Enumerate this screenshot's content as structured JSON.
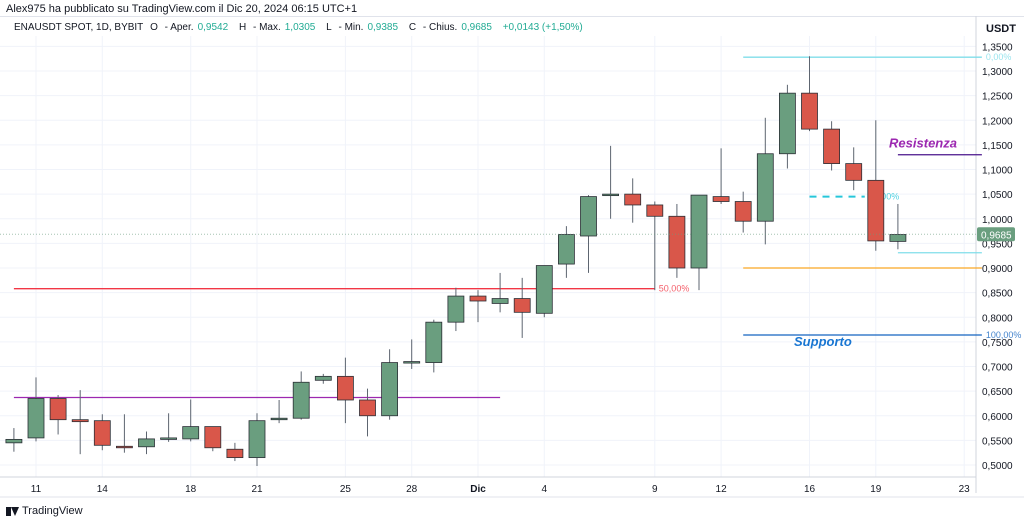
{
  "header": {
    "published": "Alex975 ha pubblicato su TradingView.com il Dic 20, 2024 06:15 UTC+1"
  },
  "legend": {
    "symbol": "ENAUSDT SPOT, 1D, BYBIT",
    "o_label": "O",
    "o_text": "Aper.",
    "o_value": "0,9542",
    "h_label": "H",
    "h_text": "Max.",
    "h_value": "1,0305",
    "l_label": "L",
    "l_text": "Min.",
    "l_value": "0,9385",
    "c_label": "C",
    "c_text": "Chius.",
    "c_value": "0,9685",
    "change": "+0,0143 (+1,50%)"
  },
  "footer": {
    "brand": "TradingView"
  },
  "chart_data": {
    "type": "candlestick",
    "currency": "USDT",
    "y_ticks": [
      "0,5000",
      "0,5500",
      "0,6000",
      "0,6500",
      "0,7000",
      "0,7500",
      "0,8000",
      "0,8500",
      "0,9000",
      "0,9500",
      "1,0000",
      "1,0500",
      "1,1000",
      "1,1500",
      "1,2000",
      "1,2500",
      "1,3000",
      "1,3500"
    ],
    "x_ticks": [
      {
        "label": "11",
        "day": 11
      },
      {
        "label": "14",
        "day": 14
      },
      {
        "label": "18",
        "day": 18
      },
      {
        "label": "21",
        "day": 21
      },
      {
        "label": "25",
        "day": 25
      },
      {
        "label": "28",
        "day": 28
      },
      {
        "label": "Dic",
        "day": 31
      },
      {
        "label": "4",
        "day": 34
      },
      {
        "label": "9",
        "day": 39
      },
      {
        "label": "12",
        "day": 42
      },
      {
        "label": "16",
        "day": 46
      },
      {
        "label": "19",
        "day": 49
      },
      {
        "label": "23",
        "day": 53
      }
    ],
    "last_price": "0,9685",
    "candles": [
      {
        "d": 10,
        "o": 0.545,
        "h": 0.575,
        "l": 0.527,
        "c": 0.552
      },
      {
        "d": 11,
        "o": 0.555,
        "h": 0.678,
        "l": 0.548,
        "c": 0.635
      },
      {
        "d": 12,
        "o": 0.635,
        "h": 0.642,
        "l": 0.562,
        "c": 0.592
      },
      {
        "d": 13,
        "o": 0.592,
        "h": 0.652,
        "l": 0.522,
        "c": 0.588
      },
      {
        "d": 14,
        "o": 0.59,
        "h": 0.603,
        "l": 0.53,
        "c": 0.54
      },
      {
        "d": 15,
        "o": 0.538,
        "h": 0.603,
        "l": 0.525,
        "c": 0.535
      },
      {
        "d": 16,
        "o": 0.537,
        "h": 0.568,
        "l": 0.522,
        "c": 0.553
      },
      {
        "d": 17,
        "o": 0.553,
        "h": 0.605,
        "l": 0.547,
        "c": 0.555
      },
      {
        "d": 18,
        "o": 0.553,
        "h": 0.633,
        "l": 0.548,
        "c": 0.578
      },
      {
        "d": 19,
        "o": 0.578,
        "h": 0.578,
        "l": 0.528,
        "c": 0.535
      },
      {
        "d": 20,
        "o": 0.532,
        "h": 0.545,
        "l": 0.508,
        "c": 0.515
      },
      {
        "d": 21,
        "o": 0.515,
        "h": 0.605,
        "l": 0.498,
        "c": 0.59
      },
      {
        "d": 22,
        "o": 0.592,
        "h": 0.632,
        "l": 0.585,
        "c": 0.595
      },
      {
        "d": 23,
        "o": 0.595,
        "h": 0.69,
        "l": 0.592,
        "c": 0.668
      },
      {
        "d": 24,
        "o": 0.672,
        "h": 0.685,
        "l": 0.665,
        "c": 0.68
      },
      {
        "d": 25,
        "o": 0.68,
        "h": 0.718,
        "l": 0.585,
        "c": 0.632
      },
      {
        "d": 26,
        "o": 0.632,
        "h": 0.655,
        "l": 0.558,
        "c": 0.6
      },
      {
        "d": 27,
        "o": 0.6,
        "h": 0.735,
        "l": 0.592,
        "c": 0.708
      },
      {
        "d": 28,
        "o": 0.708,
        "h": 0.755,
        "l": 0.695,
        "c": 0.71
      },
      {
        "d": 29,
        "o": 0.708,
        "h": 0.795,
        "l": 0.688,
        "c": 0.79
      },
      {
        "d": 30,
        "o": 0.79,
        "h": 0.86,
        "l": 0.772,
        "c": 0.843
      },
      {
        "d": 31,
        "o": 0.843,
        "h": 0.855,
        "l": 0.79,
        "c": 0.833
      },
      {
        "d": 32,
        "o": 0.828,
        "h": 0.89,
        "l": 0.81,
        "c": 0.838
      },
      {
        "d": 33,
        "o": 0.838,
        "h": 0.88,
        "l": 0.758,
        "c": 0.81
      },
      {
        "d": 34,
        "o": 0.808,
        "h": 0.905,
        "l": 0.8,
        "c": 0.905
      },
      {
        "d": 35,
        "o": 0.908,
        "h": 0.985,
        "l": 0.88,
        "c": 0.968
      },
      {
        "d": 36,
        "o": 0.965,
        "h": 1.048,
        "l": 0.89,
        "c": 1.045
      },
      {
        "d": 37,
        "o": 1.048,
        "h": 1.148,
        "l": 1.0,
        "c": 1.05
      },
      {
        "d": 38,
        "o": 1.05,
        "h": 1.082,
        "l": 0.992,
        "c": 1.028
      },
      {
        "d": 39,
        "o": 1.028,
        "h": 1.035,
        "l": 0.855,
        "c": 1.005
      },
      {
        "d": 40,
        "o": 1.005,
        "h": 1.03,
        "l": 0.88,
        "c": 0.9
      },
      {
        "d": 41,
        "o": 0.9,
        "h": 1.048,
        "l": 0.855,
        "c": 1.048
      },
      {
        "d": 42,
        "o": 1.045,
        "h": 1.143,
        "l": 1.03,
        "c": 1.035
      },
      {
        "d": 43,
        "o": 1.035,
        "h": 1.055,
        "l": 0.972,
        "c": 0.995
      },
      {
        "d": 44,
        "o": 0.995,
        "h": 1.205,
        "l": 0.948,
        "c": 1.132
      },
      {
        "d": 45,
        "o": 1.132,
        "h": 1.272,
        "l": 1.102,
        "c": 1.255
      },
      {
        "d": 46,
        "o": 1.255,
        "h": 1.33,
        "l": 1.178,
        "c": 1.182
      },
      {
        "d": 47,
        "o": 1.182,
        "h": 1.198,
        "l": 1.098,
        "c": 1.112
      },
      {
        "d": 48,
        "o": 1.112,
        "h": 1.145,
        "l": 1.058,
        "c": 1.078
      },
      {
        "d": 49,
        "o": 1.078,
        "h": 1.2,
        "l": 0.935,
        "c": 0.955
      },
      {
        "d": 50,
        "o": 0.954,
        "h": 1.03,
        "l": 0.938,
        "c": 0.968
      }
    ],
    "lines": [
      {
        "kind": "hline",
        "from": 10,
        "to": 39,
        "price": 0.858,
        "color": "#f23645",
        "label": "50,00%"
      },
      {
        "kind": "hline",
        "from": 10,
        "to": 32,
        "price": 0.637,
        "color": "#9c27b0",
        "label": ""
      },
      {
        "kind": "hline",
        "from": 43,
        "to": 53.8,
        "price": 1.328,
        "color": "#80deea",
        "label": "0,00%"
      },
      {
        "kind": "dashed",
        "from": 46,
        "to": 48.5,
        "price": 1.045,
        "color": "#26c6da",
        "label": "50,00%"
      },
      {
        "kind": "hline",
        "from": 43,
        "to": 53.8,
        "price": 0.764,
        "color": "#1565c0",
        "label": "100,00%"
      },
      {
        "kind": "hline",
        "from": 43,
        "to": 53.8,
        "price": 0.9,
        "color": "#f9a825",
        "label": ""
      },
      {
        "kind": "hline",
        "from": 50,
        "to": 53.8,
        "price": 1.13,
        "color": "#4a148c",
        "label": ""
      },
      {
        "kind": "hline",
        "from": 50,
        "to": 53.8,
        "price": 0.931,
        "color": "#80deea",
        "label": ""
      }
    ],
    "annotations": [
      {
        "text": "Resistenza",
        "day": 49.6,
        "price": 1.145,
        "color": "#9c27b0"
      },
      {
        "text": "Supporto",
        "day": 45.3,
        "price": 0.742,
        "color": "#1976d2"
      }
    ]
  }
}
